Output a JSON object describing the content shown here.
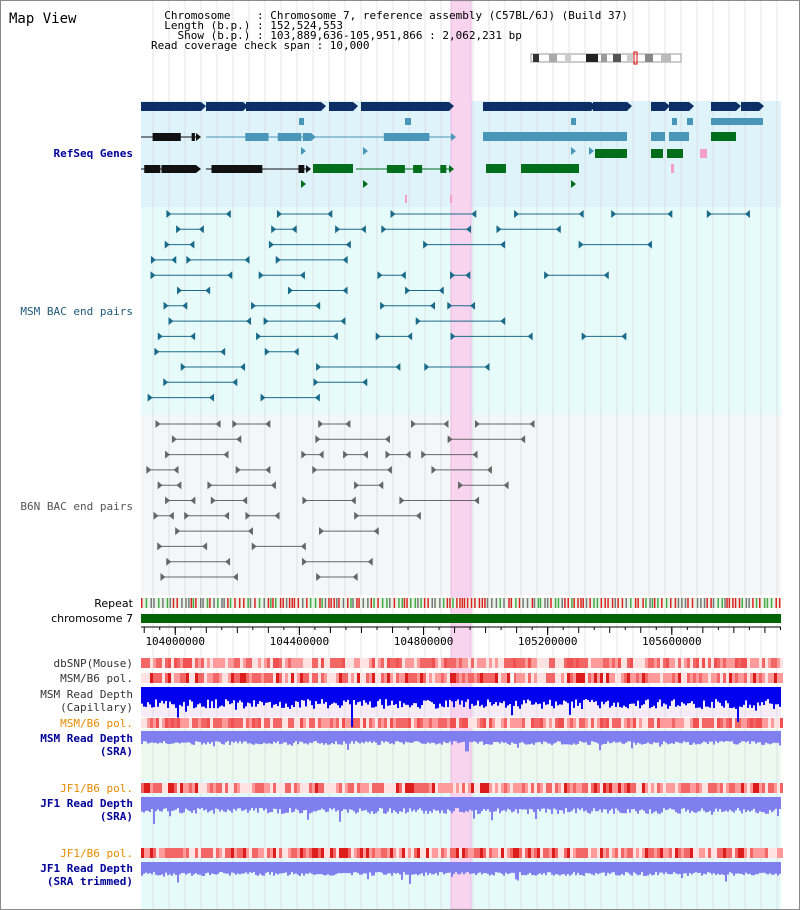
{
  "title": "Map View",
  "header": {
    "line1": "  Chromosome    : Chromosome 7, reference assembly (C57BL/6J) (Build 37)",
    "line2": "  Length (b.p.) : 152,524,553",
    "line3": "    Show (b.p.) : 103,889,636-105,951,866 : 2,062,231 bp",
    "line4": "Read coverage check span : 10,000"
  },
  "tracks": {
    "refseq": "RefSeq Genes",
    "msm_bac": "MSM BAC end pairs",
    "b6n_bac": "B6N BAC end pairs",
    "repeat": "Repeat",
    "chromosome": "chromosome 7",
    "dbsnp": "dbSNP(Mouse)",
    "msm_b6_pol": "MSM/B6 pol.",
    "msm_rd_cap_1": "MSM Read Depth",
    "msm_rd_cap_2": "(Capillary)",
    "msm_b6_pol2": "MSM/B6 pol.",
    "msm_rd_sra_1": "MSM Read Depth",
    "msm_rd_sra_2": "(SRA)",
    "jf1_b6_pol": "JF1/B6 pol.",
    "jf1_rd_sra_1": "JF1 Read Depth",
    "jf1_rd_sra_2": "(SRA)",
    "jf1_b6_pol2": "JF1/B6 pol.",
    "jf1_rd_trim_1": "JF1 Read Depth",
    "jf1_rd_trim_2": "(SRA trimmed)"
  },
  "axis": {
    "start": 103889636,
    "end": 105951866,
    "ticks": [
      "104000000",
      "104400000",
      "104800000",
      "105200000",
      "105600000"
    ]
  },
  "colors": {
    "refseq_bg": "#dff3fb",
    "msm_bg": "#e8fbfb",
    "b6n_bg": "#f4f6f7",
    "highlight": "#f8d4ef",
    "chromosome": "#006400",
    "gene_dark": "#0d2f66",
    "gene_mid": "#4a96b8",
    "gene_green": "#006e1a",
    "read_depth_cap": "#0000ee",
    "read_depth_sra": "#7f7ff0",
    "label_blue": "#000099",
    "label_orange": "#e68a00",
    "label_msm": "#1f5a7a",
    "label_b6n": "#555555"
  }
}
